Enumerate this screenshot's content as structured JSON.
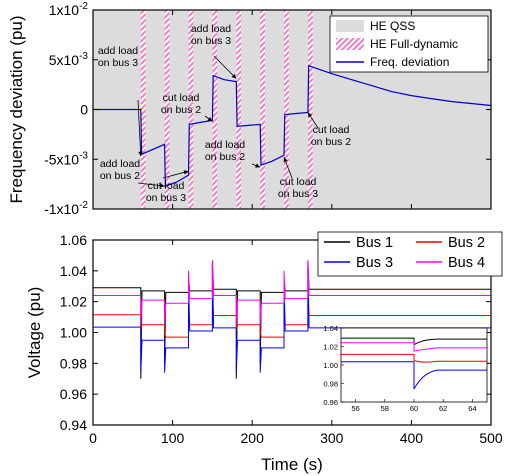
{
  "chart_data": [
    {
      "type": "line",
      "xlabel": "",
      "ylabel": "Frequency deviation (pu)",
      "xlim": [
        0,
        500
      ],
      "ylim": [
        -0.01,
        0.01
      ],
      "x_ticks": [
        0,
        100,
        200,
        300,
        400,
        500
      ],
      "y_ticks": [
        {
          "value": -0.01,
          "base": "-1x10",
          "exp": "-2"
        },
        {
          "value": -0.005,
          "base": "-5x10",
          "exp": "-3"
        },
        {
          "value": 0,
          "base": "0",
          "exp": ""
        },
        {
          "value": 0.005,
          "base": "5x10",
          "exp": "-3"
        },
        {
          "value": 0.01,
          "base": "1x10",
          "exp": "-2"
        }
      ],
      "background": {
        "name": "HE QSS",
        "color": "#dcdcdc"
      },
      "full_dynamic_windows": {
        "name": "HE Full-dynamic",
        "color": "#f07ec4",
        "intervals": [
          [
            60,
            66
          ],
          [
            90,
            96
          ],
          [
            120,
            126
          ],
          [
            150,
            156
          ],
          [
            180,
            186
          ],
          [
            210,
            216
          ],
          [
            240,
            246
          ],
          [
            270,
            276
          ]
        ]
      },
      "series": [
        {
          "name": "Freq. deviation",
          "color": "#0000cc",
          "points": [
            [
              0,
              0
            ],
            [
              60,
              0
            ],
            [
              61,
              -0.0045
            ],
            [
              90,
              -0.0035
            ],
            [
              91,
              -0.0077
            ],
            [
              105,
              -0.0073
            ],
            [
              120,
              -0.0066
            ],
            [
              121,
              -0.0015
            ],
            [
              135,
              -0.0013
            ],
            [
              150,
              -0.0011
            ],
            [
              151,
              0.0034
            ],
            [
              165,
              0.003
            ],
            [
              180,
              0.0028
            ],
            [
              181,
              -0.0017
            ],
            [
              195,
              -0.0016
            ],
            [
              210,
              -0.0015
            ],
            [
              211,
              -0.0056
            ],
            [
              225,
              -0.0052
            ],
            [
              240,
              -0.0046
            ],
            [
              241,
              -0.0005
            ],
            [
              255,
              -0.0004
            ],
            [
              270,
              -0.0003
            ],
            [
              271,
              0.0044
            ],
            [
              300,
              0.0036
            ],
            [
              325,
              0.003
            ],
            [
              350,
              0.0024
            ],
            [
              375,
              0.0018
            ],
            [
              400,
              0.0014
            ],
            [
              425,
              0.0011
            ],
            [
              450,
              0.0008
            ],
            [
              475,
              0.0006
            ],
            [
              500,
              0.0004
            ]
          ]
        }
      ],
      "annotations": [
        {
          "lines": [
            "add load",
            "on bus 3"
          ]
        },
        {
          "lines": [
            "add load",
            "on bus 2"
          ]
        },
        {
          "lines": [
            "cut load",
            "on bus 3"
          ]
        },
        {
          "lines": [
            "cut load",
            "on bus 2"
          ]
        },
        {
          "lines": [
            "add load",
            "on bus 3"
          ]
        },
        {
          "lines": [
            "add load",
            "on bus 2"
          ]
        },
        {
          "lines": [
            "cut load",
            "on bus 3"
          ]
        },
        {
          "lines": [
            "cut load",
            "on bus 2"
          ]
        }
      ],
      "legend_position": "top-right"
    },
    {
      "type": "line",
      "xlabel": "Time (s)",
      "ylabel": "Voltage (pu)",
      "xlim": [
        0,
        500
      ],
      "ylim": [
        0.94,
        1.06
      ],
      "x_ticks": [
        0,
        100,
        200,
        300,
        400,
        500
      ],
      "y_ticks": [
        0.94,
        0.96,
        0.98,
        1.0,
        1.02,
        1.04,
        1.06
      ],
      "y_tick_labels": [
        "0.94",
        "0.96",
        "0.98",
        "1.00",
        "1.02",
        "1.04",
        "1.06"
      ],
      "events": [
        {
          "t": 60,
          "delta": [
            0.0,
            -0.0005,
            -0.034,
            -0.003
          ],
          "spike": [
            0.97,
            1.0,
            0.974,
            1.005
          ]
        },
        {
          "t": 90,
          "delta": [
            0.0,
            -0.0005,
            -0.006,
            -0.002
          ],
          "spike": [
            0.98,
            1.0,
            0.974,
            1.005
          ]
        },
        {
          "t": 120,
          "delta": [
            0.0,
            0.0005,
            0.011,
            0.003
          ],
          "spike": [
            1.035,
            1.02,
            1.035,
            1.04
          ]
        },
        {
          "t": 150,
          "delta": [
            0.0,
            0.0005,
            0.029,
            0.002
          ],
          "spike": [
            1.046,
            1.02,
            1.045,
            1.047
          ]
        },
        {
          "t": 180,
          "delta": [
            0.0,
            -0.0005,
            -0.034,
            -0.003
          ],
          "spike": [
            0.97,
            1.0,
            0.974,
            1.005
          ]
        },
        {
          "t": 210,
          "delta": [
            0.0,
            -0.0005,
            -0.006,
            -0.002
          ],
          "spike": [
            0.98,
            1.0,
            0.974,
            1.005
          ]
        },
        {
          "t": 240,
          "delta": [
            0.0,
            0.0005,
            0.011,
            0.003
          ],
          "spike": [
            1.035,
            1.02,
            1.035,
            1.04
          ]
        },
        {
          "t": 270,
          "delta": [
            0.0,
            0.0005,
            0.029,
            0.002
          ],
          "spike": [
            1.046,
            1.02,
            1.045,
            1.047
          ]
        },
        {
          "t": 400,
          "delta": [
            0.0,
            0.0,
            0.0,
            0.0
          ],
          "spike": [
            1.022,
            1.005,
            0.974,
            1.015
          ]
        }
      ],
      "series": [
        {
          "name": "Bus 1",
          "color": "#000000",
          "base": 1.029,
          "after": [
            [
              60,
              1.027
            ],
            [
              90,
              1.026
            ],
            [
              120,
              1.027
            ],
            [
              150,
              1.028
            ],
            [
              180,
              1.027
            ],
            [
              210,
              1.026
            ],
            [
              240,
              1.027
            ],
            [
              270,
              1.028
            ],
            [
              300,
              1.029
            ],
            [
              400,
              1.029
            ]
          ],
          "post400": 1.028
        },
        {
          "name": "Bus 2",
          "color": "#ff0000",
          "base": 1.0115,
          "after": [
            [
              60,
              1.005
            ],
            [
              90,
              0.997
            ],
            [
              120,
              1.005
            ],
            [
              150,
              1.011
            ],
            [
              180,
              1.005
            ],
            [
              210,
              0.997
            ],
            [
              240,
              1.005
            ],
            [
              270,
              1.011
            ],
            [
              400,
              1.0115
            ]
          ],
          "post400": 1.004
        },
        {
          "name": "Bus 3",
          "color": "#0000ff",
          "base": 1.0035,
          "after": [
            [
              60,
              0.995
            ],
            [
              90,
              0.99
            ],
            [
              120,
              1.001
            ],
            [
              150,
              1.003
            ],
            [
              180,
              0.995
            ],
            [
              210,
              0.99
            ],
            [
              240,
              1.001
            ],
            [
              270,
              1.003
            ],
            [
              400,
              1.0035
            ]
          ],
          "post400": 0.9945
        },
        {
          "name": "Bus 4",
          "color": "#ff00ff",
          "base": 1.024,
          "after": [
            [
              60,
              1.021
            ],
            [
              90,
              1.019
            ],
            [
              120,
              1.022
            ],
            [
              150,
              1.024
            ],
            [
              180,
              1.021
            ],
            [
              210,
              1.019
            ],
            [
              240,
              1.022
            ],
            [
              270,
              1.024
            ],
            [
              400,
              1.024
            ]
          ],
          "post400": 1.0185
        }
      ],
      "legend_position": "top-right",
      "inset": {
        "xlim": [
          55,
          65
        ],
        "ylim": [
          0.96,
          1.04
        ],
        "x_ticks": [
          56,
          58,
          60,
          62,
          64
        ],
        "y_ticks": [
          0.96,
          0.98,
          1.0,
          1.02,
          1.04
        ],
        "y_tick_labels": [
          "0.96",
          "0.98",
          "1.00",
          "1.02",
          "1.04"
        ],
        "step_time": 60
      }
    }
  ]
}
